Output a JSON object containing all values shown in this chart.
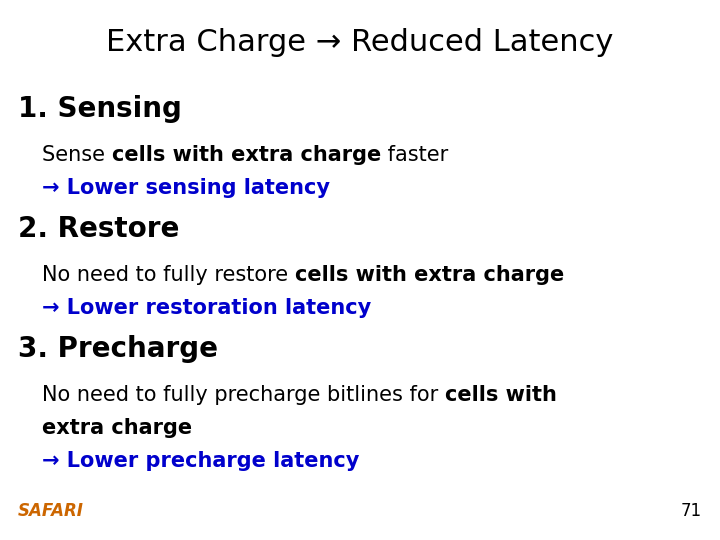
{
  "bg_color": "#ffffff",
  "title": "Extra Charge → Reduced Latency",
  "title_fontsize": 22,
  "title_color": "#000000",
  "safari_text": "SAFARI",
  "safari_color": "#CC6600",
  "safari_fontsize": 12,
  "page_num": "71",
  "page_num_color": "#000000",
  "page_num_fontsize": 12
}
